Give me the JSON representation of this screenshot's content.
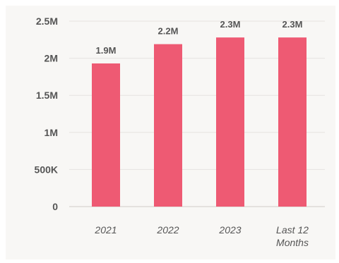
{
  "chart_data": {
    "type": "bar",
    "categories": [
      "2021",
      "2022",
      "2023",
      "Last 12 Months"
    ],
    "category_lines": [
      [
        "2021"
      ],
      [
        "2022"
      ],
      [
        "2023"
      ],
      [
        "Last 12",
        "Months"
      ]
    ],
    "values": [
      1930000,
      2190000,
      2280000,
      2280000
    ],
    "data_labels": [
      "1.9M",
      "2.2M",
      "2.3M",
      "2.3M"
    ],
    "yticks": [
      {
        "value": 0,
        "label": "0"
      },
      {
        "value": 500000,
        "label": "500K"
      },
      {
        "value": 1000000,
        "label": "1M"
      },
      {
        "value": 1500000,
        "label": "1.5M"
      },
      {
        "value": 2000000,
        "label": "2M"
      },
      {
        "value": 2500000,
        "label": "2.5M"
      }
    ],
    "ylim": [
      0,
      2500000
    ],
    "grid": true,
    "title": "",
    "xlabel": "",
    "ylabel": "",
    "colors": {
      "bar": "#ee5a73",
      "background": "#f8f7f5",
      "text": "#555555"
    }
  }
}
